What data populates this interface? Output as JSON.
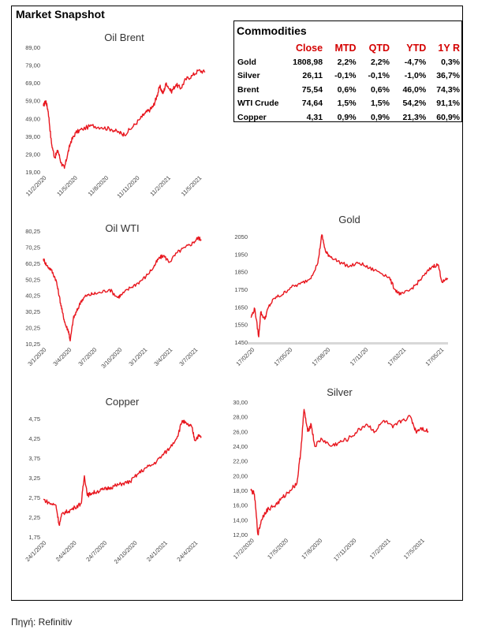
{
  "page": {
    "title": "Market Snapshot",
    "source": "Πηγή: Refinitiv"
  },
  "commodities": {
    "title": "Commodities",
    "headers": [
      "",
      "Close",
      "MTD",
      "QTD",
      "YTD",
      "1Y R"
    ],
    "rows": [
      [
        "Gold",
        "1808,98",
        "2,2%",
        "2,2%",
        "-4,7%",
        "0,3%"
      ],
      [
        "Silver",
        "26,11",
        "-0,1%",
        "-0,1%",
        "-1,0%",
        "36,7%"
      ],
      [
        "Brent",
        "75,54",
        "0,6%",
        "0,6%",
        "46,0%",
        "74,3%"
      ],
      [
        "WTI Crude",
        "74,64",
        "1,5%",
        "1,5%",
        "54,2%",
        "91,1%"
      ],
      [
        "Copper",
        "4,31",
        "0,9%",
        "0,9%",
        "21,3%",
        "60,9%"
      ]
    ]
  },
  "chart_data": [
    {
      "type": "line",
      "title": "Oil Brent",
      "color": "#e8171f",
      "ylim": [
        19,
        89
      ],
      "yticks": [
        "19,00",
        "29,00",
        "39,00",
        "49,00",
        "59,00",
        "69,00",
        "79,00",
        "89,00"
      ],
      "xticks": [
        "11/2/2020",
        "11/5/2020",
        "11/8/2020",
        "11/11/2020",
        "11/2/2021",
        "11/5/2021"
      ],
      "x": [
        0,
        0.015,
        0.03,
        0.05,
        0.07,
        0.09,
        0.11,
        0.13,
        0.15,
        0.17,
        0.2,
        0.24,
        0.3,
        0.36,
        0.42,
        0.47,
        0.5,
        0.55,
        0.6,
        0.63,
        0.66,
        0.68,
        0.7,
        0.72,
        0.74,
        0.76,
        0.79,
        0.82,
        0.85,
        0.88,
        0.92,
        0.96,
        1.0
      ],
      "values": [
        56,
        59,
        53,
        35,
        27,
        31,
        24,
        21,
        29,
        36,
        41,
        43,
        45,
        44,
        43,
        41,
        40,
        44,
        49,
        52,
        54,
        56,
        61,
        67,
        63,
        69,
        64,
        68,
        66,
        71,
        73,
        76,
        75
      ]
    },
    {
      "type": "line",
      "title": "Oil WTI",
      "color": "#e8171f",
      "ylim": [
        10.25,
        80.25
      ],
      "yticks": [
        "10,25",
        "20,25",
        "30,25",
        "40,25",
        "50,25",
        "60,25",
        "70,25",
        "80,25"
      ],
      "xticks": [
        "3/1/2020",
        "3/4/2020",
        "3/7/2020",
        "3/10/2020",
        "3/1/2021",
        "3/4/2021",
        "3/7/2021"
      ],
      "x": [
        0,
        0.02,
        0.05,
        0.08,
        0.1,
        0.12,
        0.14,
        0.16,
        0.17,
        0.19,
        0.21,
        0.24,
        0.27,
        0.31,
        0.36,
        0.42,
        0.47,
        0.5,
        0.55,
        0.6,
        0.65,
        0.7,
        0.73,
        0.76,
        0.8,
        0.85,
        0.9,
        0.95,
        0.98,
        1.0
      ],
      "values": [
        63,
        59,
        56,
        50,
        40,
        30,
        22,
        18,
        12,
        26,
        30,
        37,
        40,
        41,
        42,
        44,
        39,
        41,
        45,
        48,
        52,
        58,
        63,
        65,
        61,
        67,
        70,
        73,
        76,
        75
      ]
    },
    {
      "type": "line",
      "title": "Gold",
      "color": "#e8171f",
      "ylim": [
        1450,
        2050
      ],
      "yticks": [
        "1450",
        "1550",
        "1650",
        "1750",
        "1850",
        "1950",
        "2050"
      ],
      "xticks": [
        "17/02/20",
        "17/05/20",
        "17/08/20",
        "17/11/20",
        "17/02/21",
        "17/05/21"
      ],
      "x": [
        0,
        0.02,
        0.04,
        0.05,
        0.07,
        0.09,
        0.12,
        0.16,
        0.2,
        0.25,
        0.3,
        0.34,
        0.36,
        0.38,
        0.4,
        0.44,
        0.5,
        0.55,
        0.6,
        0.65,
        0.7,
        0.73,
        0.76,
        0.8,
        0.84,
        0.88,
        0.92,
        0.95,
        0.97,
        1.0
      ],
      "values": [
        1590,
        1640,
        1480,
        1620,
        1580,
        1650,
        1700,
        1720,
        1760,
        1780,
        1810,
        1900,
        2060,
        1960,
        1940,
        1910,
        1880,
        1900,
        1870,
        1850,
        1820,
        1750,
        1720,
        1740,
        1780,
        1830,
        1880,
        1890,
        1790,
        1810
      ]
    },
    {
      "type": "line",
      "title": "Copper",
      "color": "#e8171f",
      "ylim": [
        1.75,
        4.75
      ],
      "yticks": [
        "1,75",
        "2,25",
        "2,75",
        "3,25",
        "3,75",
        "4,25",
        "4,75"
      ],
      "xticks": [
        "24/1/2020",
        "24/4/2020",
        "24/7/2020",
        "24/10/2020",
        "24/1/2021",
        "24/4/2021"
      ],
      "x": [
        0,
        0.04,
        0.08,
        0.1,
        0.12,
        0.16,
        0.2,
        0.24,
        0.26,
        0.28,
        0.3,
        0.34,
        0.38,
        0.42,
        0.46,
        0.5,
        0.55,
        0.6,
        0.65,
        0.7,
        0.75,
        0.8,
        0.85,
        0.88,
        0.91,
        0.94,
        0.96,
        0.98,
        1.0
      ],
      "values": [
        2.7,
        2.6,
        2.55,
        2.05,
        2.35,
        2.4,
        2.5,
        2.6,
        3.3,
        2.8,
        2.85,
        2.9,
        2.95,
        3.0,
        3.05,
        3.1,
        3.15,
        3.35,
        3.5,
        3.6,
        3.8,
        4.0,
        4.3,
        4.7,
        4.6,
        4.55,
        4.2,
        4.3,
        4.3
      ]
    },
    {
      "type": "line",
      "title": "Silver",
      "color": "#e8171f",
      "ylim": [
        12,
        30
      ],
      "yticks": [
        "12,00",
        "14,00",
        "16,00",
        "18,00",
        "20,00",
        "22,00",
        "24,00",
        "26,00",
        "28,00",
        "30,00"
      ],
      "xticks": [
        "17/2/2020",
        "17/5/2020",
        "17/8/2020",
        "17/11/2020",
        "17/2/2021",
        "17/5/2021"
      ],
      "x": [
        0,
        0.02,
        0.04,
        0.06,
        0.08,
        0.1,
        0.14,
        0.18,
        0.22,
        0.26,
        0.28,
        0.3,
        0.32,
        0.34,
        0.36,
        0.4,
        0.45,
        0.5,
        0.55,
        0.6,
        0.65,
        0.7,
        0.75,
        0.8,
        0.85,
        0.9,
        0.93,
        0.96,
        1.0
      ],
      "values": [
        18,
        17.5,
        12,
        14,
        15,
        15.5,
        16,
        17,
        18,
        19,
        23,
        29,
        26,
        27,
        24,
        25,
        24,
        24.5,
        25,
        26,
        27,
        26,
        27.5,
        26.5,
        27.5,
        28,
        26,
        26.5,
        26
      ]
    }
  ]
}
